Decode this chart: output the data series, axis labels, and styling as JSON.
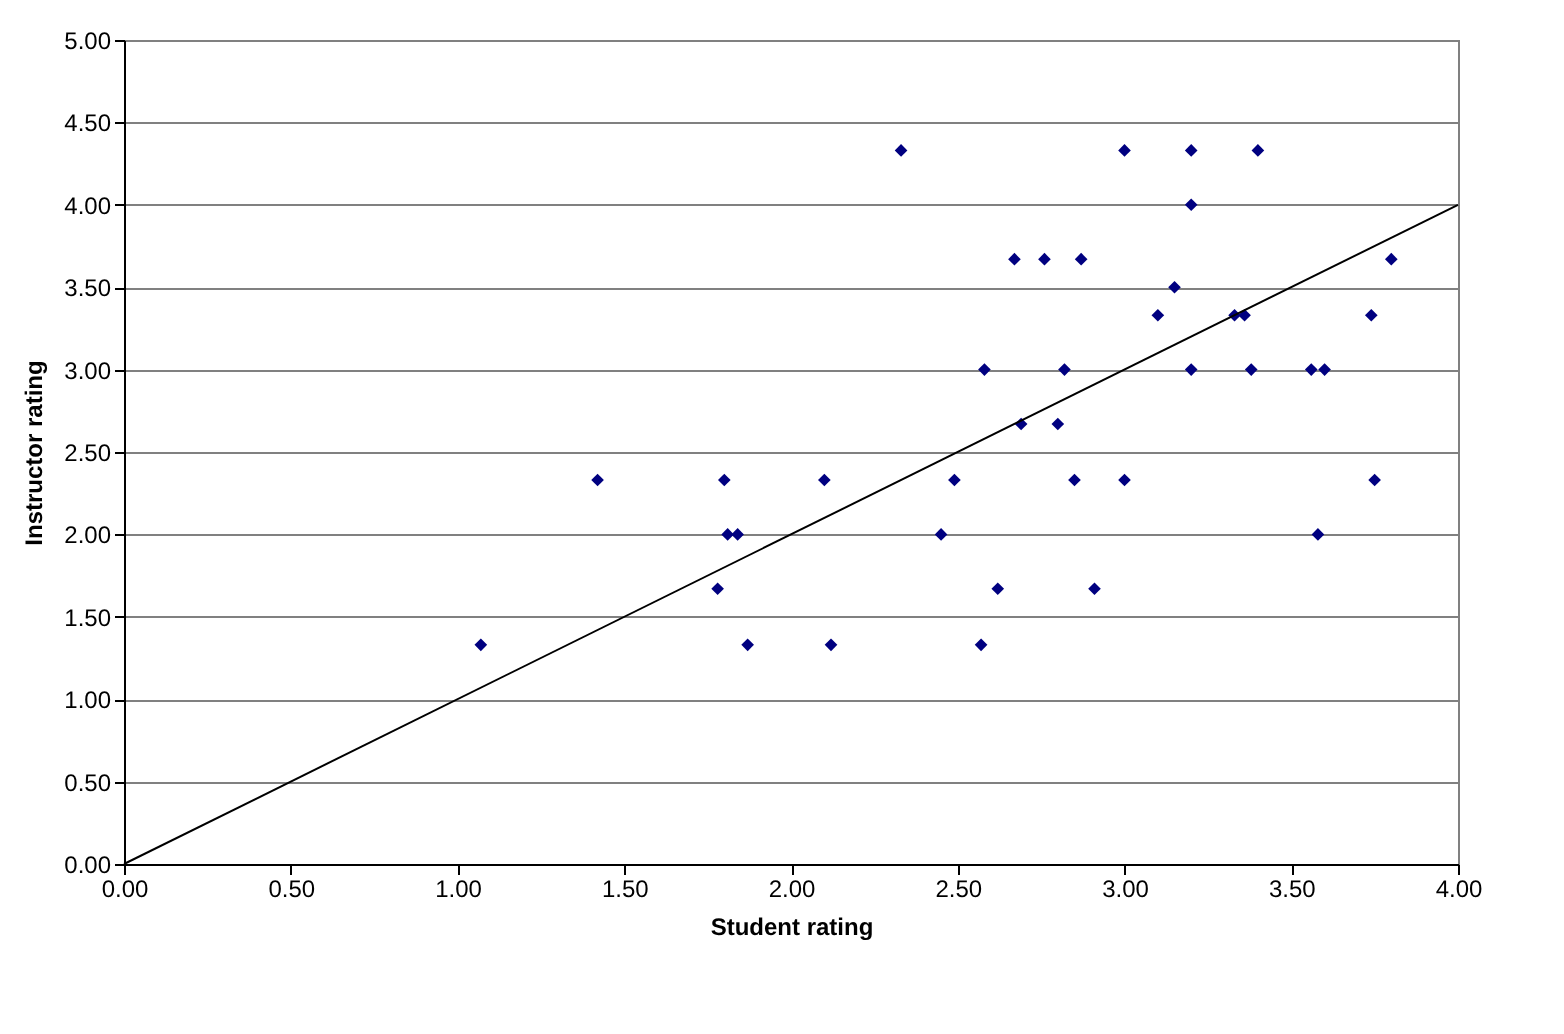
{
  "chart_data": {
    "type": "scatter",
    "xlabel": "Student rating",
    "ylabel": "Instructor rating",
    "marker": "diamond",
    "grid": "y",
    "xlim": [
      0,
      4
    ],
    "ylim": [
      0,
      5
    ],
    "xticks": [
      {
        "value": 0,
        "label": "0.00"
      },
      {
        "value": 0.5,
        "label": "0.50"
      },
      {
        "value": 1,
        "label": "1.00"
      },
      {
        "value": 1.5,
        "label": "1.50"
      },
      {
        "value": 2,
        "label": "2.00"
      },
      {
        "value": 2.5,
        "label": "2.50"
      },
      {
        "value": 3,
        "label": "3.00"
      },
      {
        "value": 3.5,
        "label": "3.50"
      },
      {
        "value": 4,
        "label": "4.00"
      }
    ],
    "yticks": [
      {
        "value": 0,
        "label": "0.00"
      },
      {
        "value": 0.5,
        "label": "0.50"
      },
      {
        "value": 1,
        "label": "1.00"
      },
      {
        "value": 1.5,
        "label": "1.50"
      },
      {
        "value": 2,
        "label": "2.00"
      },
      {
        "value": 2.5,
        "label": "2.50"
      },
      {
        "value": 3,
        "label": "3.00"
      },
      {
        "value": 3.5,
        "label": "3.50"
      },
      {
        "value": 4,
        "label": "4.00"
      },
      {
        "value": 4.5,
        "label": "4.50"
      },
      {
        "value": 5,
        "label": "5.00"
      }
    ],
    "series": [
      {
        "color": "#000080",
        "x": [
          1.07,
          1.42,
          1.78,
          1.8,
          1.81,
          1.84,
          1.87,
          2.1,
          2.12,
          2.33,
          2.45,
          2.49,
          2.57,
          2.58,
          2.62,
          2.67,
          2.69,
          2.76,
          2.8,
          2.82,
          2.85,
          2.87,
          2.91,
          3.0,
          3.0,
          3.1,
          3.15,
          3.2,
          3.2,
          3.2,
          3.33,
          3.36,
          3.38,
          3.4,
          3.56,
          3.6,
          3.58,
          3.74,
          3.75,
          3.8
        ],
        "values": [
          1.33,
          2.33,
          1.67,
          2.33,
          2.0,
          2.0,
          1.33,
          2.33,
          1.33,
          4.33,
          2.0,
          2.33,
          1.33,
          3.0,
          1.67,
          3.67,
          2.67,
          3.67,
          2.67,
          3.0,
          2.33,
          3.67,
          1.67,
          4.33,
          2.33,
          3.33,
          3.5,
          4.33,
          4.0,
          3.0,
          3.33,
          3.33,
          3.0,
          4.33,
          3.0,
          3.0,
          2.0,
          3.33,
          2.33,
          3.67
        ]
      },
      {
        "type": "line",
        "color": "#000000",
        "x": [
          0,
          4
        ],
        "values": [
          0,
          4
        ],
        "marker": "none"
      }
    ]
  }
}
